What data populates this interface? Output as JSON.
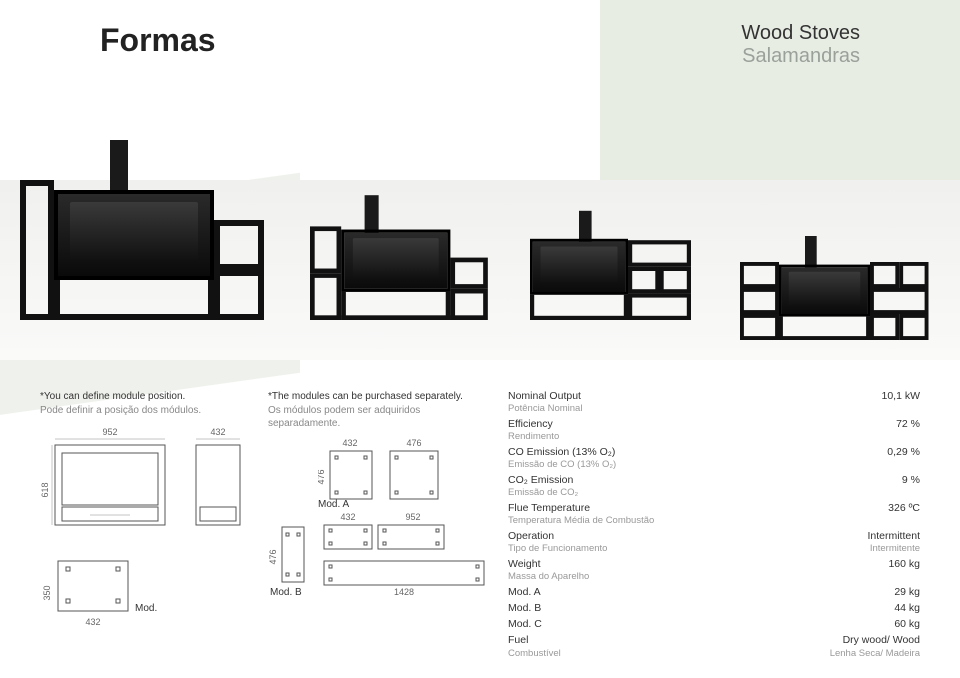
{
  "header": {
    "title": "Formas",
    "subtitle_en": "Wood Stoves",
    "subtitle_pt": "Salamandras"
  },
  "notes": {
    "left_en": "*You can define module position.",
    "left_pt": "Pode definir a posição dos módulos.",
    "right_en": "*The modules can be purchased separately.",
    "right_pt": "Os módulos podem ser adquiridos separadamente."
  },
  "dimensions": {
    "front_width": "952",
    "front_height": "618",
    "side_width": "432",
    "modc_depth": "350",
    "modc_width": "432",
    "modc_label": "Mod. C",
    "modb_label": "Mod. B",
    "modb_h": "476",
    "moda_label": "Mod. A",
    "moda_h": "476",
    "moda_w": "432",
    "moda_w2": "432",
    "top_right_w": "476",
    "mid_w": "952",
    "bottom_w": "1428"
  },
  "specs": [
    {
      "en": "Nominal Output",
      "pt": "Potência Nominal",
      "val": "10,1 kW"
    },
    {
      "en": "Efficiency",
      "pt": "Rendimento",
      "val": "72 %"
    },
    {
      "en": "CO Emission (13% O₂)",
      "pt": "Emissão de CO (13% O₂)",
      "val": "0,29 %"
    },
    {
      "en": "CO₂ Emission",
      "pt": "Emissão de CO₂",
      "val": "9 %"
    },
    {
      "en": "Flue Temperature",
      "pt": "Temperatura Média de Combustão",
      "val": "326 ºC"
    },
    {
      "en": "Operation",
      "pt": "Tipo de Funcionamento",
      "val": "Intermittent",
      "valpt": "Intermitente"
    },
    {
      "en": "Weight",
      "pt": "Massa do Aparelho",
      "val": "160 kg"
    },
    {
      "en": "Mod. A",
      "pt": "",
      "val": "29 kg"
    },
    {
      "en": "Mod. B",
      "pt": "",
      "val": "44 kg"
    },
    {
      "en": "Mod. C",
      "pt": "",
      "val": "60 kg"
    },
    {
      "en": "Fuel",
      "pt": "Combustível",
      "val": "Dry wood/ Wood",
      "valpt": "Lenha Seca/ Madeira"
    }
  ],
  "colors": {
    "stove": "#1a1a1a",
    "bg_tint": "#e8ede4",
    "text_muted": "#999999"
  }
}
